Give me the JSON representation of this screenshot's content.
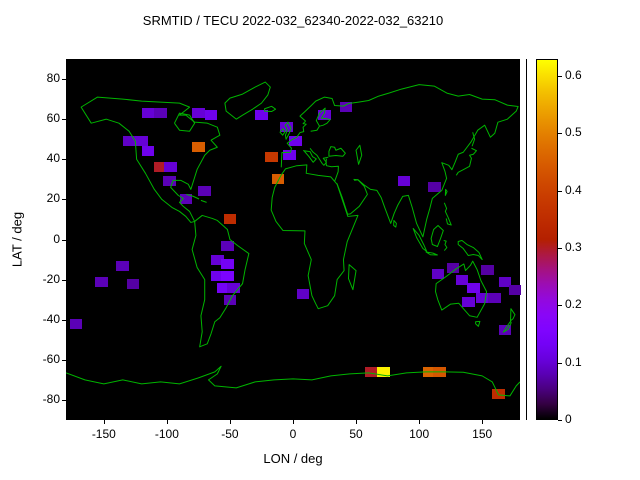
{
  "chart_data": {
    "type": "heatmap",
    "title": "SRMTID / TECU 2022-032_62340-2022-032_63210",
    "xlabel": "LON / deg",
    "ylabel": "LAT / deg",
    "xlim": [
      -180,
      180
    ],
    "ylim": [
      -90,
      90
    ],
    "xticks": [
      -150,
      -100,
      -50,
      0,
      50,
      100,
      150
    ],
    "yticks": [
      80,
      60,
      40,
      20,
      0,
      -20,
      -40,
      -60,
      -80
    ],
    "background": "#000000",
    "colorbar": {
      "min": 0,
      "max": 0.63,
      "ticks": [
        0,
        0.1,
        0.2,
        0.3,
        0.4,
        0.5,
        0.6
      ],
      "palette": "gnuplot-pm3d-black-purple-red-yellow",
      "position": "right"
    },
    "cell_size_deg": {
      "lon": 10,
      "lat": 5
    },
    "cells": [
      {
        "lon": -115,
        "lat": 63,
        "value": 0.1
      },
      {
        "lon": -105,
        "lat": 63,
        "value": 0.08
      },
      {
        "lon": -75,
        "lat": 63,
        "value": 0.1
      },
      {
        "lon": -65,
        "lat": 62,
        "value": 0.12
      },
      {
        "lon": -25,
        "lat": 62,
        "value": 0.12
      },
      {
        "lon": -130,
        "lat": 49,
        "value": 0.09
      },
      {
        "lon": -120,
        "lat": 49,
        "value": 0.1
      },
      {
        "lon": -115,
        "lat": 44,
        "value": 0.12
      },
      {
        "lon": -105,
        "lat": 36,
        "value": 0.3
      },
      {
        "lon": -97,
        "lat": 36,
        "value": 0.1
      },
      {
        "lon": -75,
        "lat": 46,
        "value": 0.45
      },
      {
        "lon": -98,
        "lat": 29,
        "value": 0.08
      },
      {
        "lon": -85,
        "lat": 20,
        "value": 0.08
      },
      {
        "lon": -70,
        "lat": 24,
        "value": 0.08
      },
      {
        "lon": -50,
        "lat": 10,
        "value": 0.35
      },
      {
        "lon": -5,
        "lat": 56,
        "value": 0.1
      },
      {
        "lon": 2,
        "lat": 49,
        "value": 0.12
      },
      {
        "lon": 25,
        "lat": 62,
        "value": 0.1
      },
      {
        "lon": 42,
        "lat": 66,
        "value": 0.08
      },
      {
        "lon": -17,
        "lat": 41,
        "value": 0.38
      },
      {
        "lon": -3,
        "lat": 42,
        "value": 0.12
      },
      {
        "lon": -12,
        "lat": 30,
        "value": 0.45
      },
      {
        "lon": 88,
        "lat": 29,
        "value": 0.1
      },
      {
        "lon": 112,
        "lat": 26,
        "value": 0.07
      },
      {
        "lon": -52,
        "lat": -3,
        "value": 0.08
      },
      {
        "lon": -60,
        "lat": -10,
        "value": 0.1
      },
      {
        "lon": -52,
        "lat": -12,
        "value": 0.13
      },
      {
        "lon": -60,
        "lat": -18,
        "value": 0.12
      },
      {
        "lon": -52,
        "lat": -18,
        "value": 0.15
      },
      {
        "lon": -55,
        "lat": -24,
        "value": 0.13
      },
      {
        "lon": -47,
        "lat": -24,
        "value": 0.1
      },
      {
        "lon": -50,
        "lat": -30,
        "value": 0.08
      },
      {
        "lon": -135,
        "lat": -13,
        "value": 0.08
      },
      {
        "lon": -152,
        "lat": -21,
        "value": 0.08
      },
      {
        "lon": -127,
        "lat": -22,
        "value": 0.07
      },
      {
        "lon": -172,
        "lat": -42,
        "value": 0.08
      },
      {
        "lon": 8,
        "lat": -27,
        "value": 0.09
      },
      {
        "lon": 115,
        "lat": -17,
        "value": 0.09
      },
      {
        "lon": 127,
        "lat": -14,
        "value": 0.07
      },
      {
        "lon": 134,
        "lat": -20,
        "value": 0.1
      },
      {
        "lon": 143,
        "lat": -24,
        "value": 0.12
      },
      {
        "lon": 150,
        "lat": -29,
        "value": 0.1
      },
      {
        "lon": 160,
        "lat": -29,
        "value": 0.08
      },
      {
        "lon": 168,
        "lat": -21,
        "value": 0.09
      },
      {
        "lon": 154,
        "lat": -15,
        "value": 0.07
      },
      {
        "lon": 139,
        "lat": -31,
        "value": 0.1
      },
      {
        "lon": 168,
        "lat": -45,
        "value": 0.08
      },
      {
        "lon": 176,
        "lat": -25,
        "value": 0.07
      },
      {
        "lon": 62,
        "lat": -66,
        "value": 0.3
      },
      {
        "lon": 72,
        "lat": -66,
        "value": 0.62
      },
      {
        "lon": 108,
        "lat": -66,
        "value": 0.46
      },
      {
        "lon": 116,
        "lat": -66,
        "value": 0.44
      },
      {
        "lon": 163,
        "lat": -77,
        "value": 0.35
      }
    ],
    "map": {
      "stroke": "#00b400",
      "coastlines": [
        "M -168 -66 L -160 -58 L -148 -60 L -138 -58 L -130 -54 L -125 -49 L -124 -40 L -117 -33 L -110 -25 L -104 -20 L -96 -16 L -90 -14 L -85 -11.5 L -81 -8.5 L -78 -9 L -82 -14 L -87 -16.5 L -90 -18.5 L -87 -20.5 L -91 -22 L -97 -26 L -95 -29.5 L -89 -29.5 L -83 -27.5 L -81 -25 L -80 -27 L -76 -35 L -70 -42 L -66 -44.5 L -60 -46 L -65 -49.5 L -58 -52 L -60 -56 L -68 -58 L -78 -58.5 L -85 -62 L -90 -62 L -82 -66 L -90 -68 L -105 -68.5 L -120 -69 L -135 -70 L -155 -71 L -168 -66 Z",
        "M -94 -58 L -90 -54.5 L -82 -54 L -78 -58 L -82 -62 L -90 -63 L -94 -58",
        "M -45 -60 L -53 -64 L -54 -68 L -50 -70.5 L -40 -72.5 L -30 -76 L -22 -78.5 L -18 -76 L -20 -72 L -25 -68 L -32 -65 L -40 -62 Z",
        "M -22.5 -64 L -17 -63.8 L -13.8 -65 L -17 -66.4 L -22.5 -65.2 Z",
        "M -78 -9 L -72 -12 L -64 -10.5 L -60 -9.5 L -52 -5 L -50 0 L -44 3 L -35 7 L -38 15 L -40 22 L -48 28 L -53 34 L -58 39 L -62 41 L -65 47 L -68 52 L -74 53.5 L -72 46 L -73 38 L -70 30 L -70 20 L -76 14 L -80 5 L -77 -2 Z",
        "M -84.5 -22.5 L -79 -21.5 L -74.5 -20.2",
        "M -73 -19.5 L -68.5 -18.5",
        "M -6 -35.2 L 3 -36.8 L 11 -37.2 L 10.5 -33 L 20 -32 L 30 -31.2 L 35 -27.5 L 43.5 -11.5 L 51.5 -12 L 43 1 L 40 10 L 40.5 15.5 L 35 20 L 33 28 L 27.5 33 L 20 34.5 L 18 32 L 15 28 L 12 18 L 14.5 10 L 9 2 L 9.5 -4.3 L -8 -4.5 L -13.5 -9 L -17.3 -14.7 L -16.5 -21 L -14.5 -26 L -9.5 -32 Z",
        "M 44.5 12.5 L 50 15.5 L 47.5 25 L 44 19.5 Z",
        "M -9.3 -36 L -8.8 -43.3 L -2 -43.5 L -1.2 -45.5 L -4.6 -48 L -1.5 -49.5 L 3 -51 L 5.5 -53.3 L 8.5 -53.8 L 8 -56 L 10.5 -57.5 L 8 -57.8 L 10 -59",
        "M 10 -59 L 5.5 -61.5 L 9 -63.5 L 14 -66.5 L 18 -69 L 25 -71 L 31 -70.3 L 33 -66.8 L 40 -66.5 L 44 -67.8 L 52 -68.5 L 60 -69.3 L 68 -71.5 L 76 -73 L 86 -75 L 100 -77.2 L 112 -76.5 L 122 -73 L 131 -71.5 L 140 -72.3 L 150 -70 L 160 -69.7 L 170 -67 L 178.5 -66.3 L 177 -64 L 170 -60 L 162.5 -58.5 L 160 -53 L 156.5 -51 L 152 -57 L 146.5 -54.5 L 141 -48.5 L 135 -43.5 L 131 -42.5 L 128.5 -38.5 L 126 -34.8 L 123.5 -37 L 118 -38.3 L 120.5 -34 L 121.8 -30.5 L 118 -24.5 L 110.5 -20.5 L 108.5 -15.5 L 106 -10 L 103 -1.3 L 98 -8 L 94.5 -16 L 91.5 -22 L 87 -21.5 L 83 -17 L 80.2 -13 L 77.5 -8 L 73 -15.5 L 70 -20.8 L 66.5 -24.5 L 61.5 -25 L 56.8 -27 L 51.5 -29.8 L 48 -30",
        "M 14 -54 L 19 -54.5 L 21 -56.5 L 18.5 -59.3 L 21 -63 L 25.5 -65.5 L 25 -63 L 22.5 -60.5 L 26 -60.3 L 29.5 -59.8 L 27 -58 L 24 -57 L 21 -56.5",
        "M -5.5 -50 L -3 -53 L -1.5 -55.5 L -4 -58.5 L -6.2 -57 L -4.5 -54.5 L -6 -52 Z",
        "M -8.2 -52 L -6.3 -53.8 L -8 -55.2 L -10.3 -53.5 Z",
        "M 8 -44.3 L 13.5 -43.8 L 15.5 -41.3 L 18.5 -40.2 L 16 -38.5 L 12.5 -41.5 L 9 -44",
        "M 13.5 -45.5 L 16 -43.5 L 19 -42 L 21 -40 L 23 -38 L 24.5 -37 L 26.5 -38.5 L 24 -40.5 L 28 -41",
        "M 28.5 -41.5 L 34 -41.9 L 39.5 -41.5 L 41.5 -43 L 38 -45.5 L 34 -44.5 L 33 -46 L 30 -46.3 L 28.5 -44 Z",
        "M 52 -37.5 L 54.5 -42 L 53 -47 L 50 -44.5 L 52 -37.5 Z",
        "M 33 -29 L 34.5 -31.5 L 35.8 -33.8 L 36 -36.5 L 30.5 -36.3 L 26.5 -36.8 L 26.2 -38.5 L 26.5 -40.3",
        "M 34.8 -28 L 39 -21 L 43.3 -12.6 L 45.5 -12.8 L 52.5 -16.5 L 59 -22.5 L 56.5 -26.5 L 51.5 -29.8 L 48.5 -29.5",
        "M 80 -9.5 L 82 -8 L 81.5 -6.2 L 79.8 -7 Z",
        "M 129.5 -32 L 131 -33.5 L 135 -34.8 L 140 -36.5 L 141.5 -40.5 L 140 -42 L 143 -42.5 L 145.5 -44.3 L 141.5 -45.5",
        "M 142 -46.5 L 144 -50 L 142.5 -53.5",
        "M 121 -25 L 122.2 -24 L 120.8 -22 Z",
        "M 120 -18.3 L 121.8 -15.5 L 120.8 -14 L 123 -11 L 125.5 -7.2 L 122.5 -7.8 L 121.5 -10.5",
        "M 95.3 -5.5 L 100 -2 L 104 3 L 106 5.9 L 103 4.5 L 98 -1 Z",
        "M 105.5 6.2 L 111 6.8 L 114.5 7.7 L 109 7.6 Z",
        "M 109.5 -0.5 L 111.5 -5 L 115 -7 L 119.2 -4.5 L 117 -0.5 L 114.5 3.5 L 110.5 2.5 Z",
        "M 119.5 0.5 L 121.5 0.8 L 120.5 2.5 L 122 4 L 120 5.5",
        "M 131 1 L 134 0.5 L 138 2.5 L 143 4 L 147.5 6.5 L 150 10 L 147 8 L 143 7.5 L 139 8 L 135 4.5 L 131 2.5 Z",
        "M 113.5 22 L 122 18.2 L 129 14.8 L 135.5 12.2 L 136.8 15.5 L 140.8 12.8 L 142.5 10.8 L 146 15 L 149 20.5 L 153.5 26 L 152 32 L 146 38.8 L 140 38 L 135.8 35 L 131.5 31.8 L 125 32.2 L 118 35.2 L 114.8 30 L 113 26 Z",
        "M 144.8 41 L 148.2 40.8 L 147 43.3 L 144.8 42 Z",
        "M 172.8 34.5 L 176 37.5 L 174.5 39.5 L 172.5 40.5 Z",
        "M 172.5 40.8 L 170 43 L 166.8 46.2 L 170.5 44.8 L 173 41.5 Z",
        "M -180 66.5 L -165 70 L -150 72 L -135 70 L -120 72 L -105 71 L -90 72 L -75 69 L -62 66 L -57 63.2 L -60 67 L -67 70 L -62 73 L -45 74 L -30 71 L -15 70 L 0 69.5 L 15 70 L 30 68 L 45 67 L 60 66.5 L 75 68 L 90 66.5 L 105 66 L 120 66 L 135 66.2 L 150 68 L 158 71 L 163 77.5 L 172 78 L 177 73 L 180 71"
      ]
    }
  }
}
